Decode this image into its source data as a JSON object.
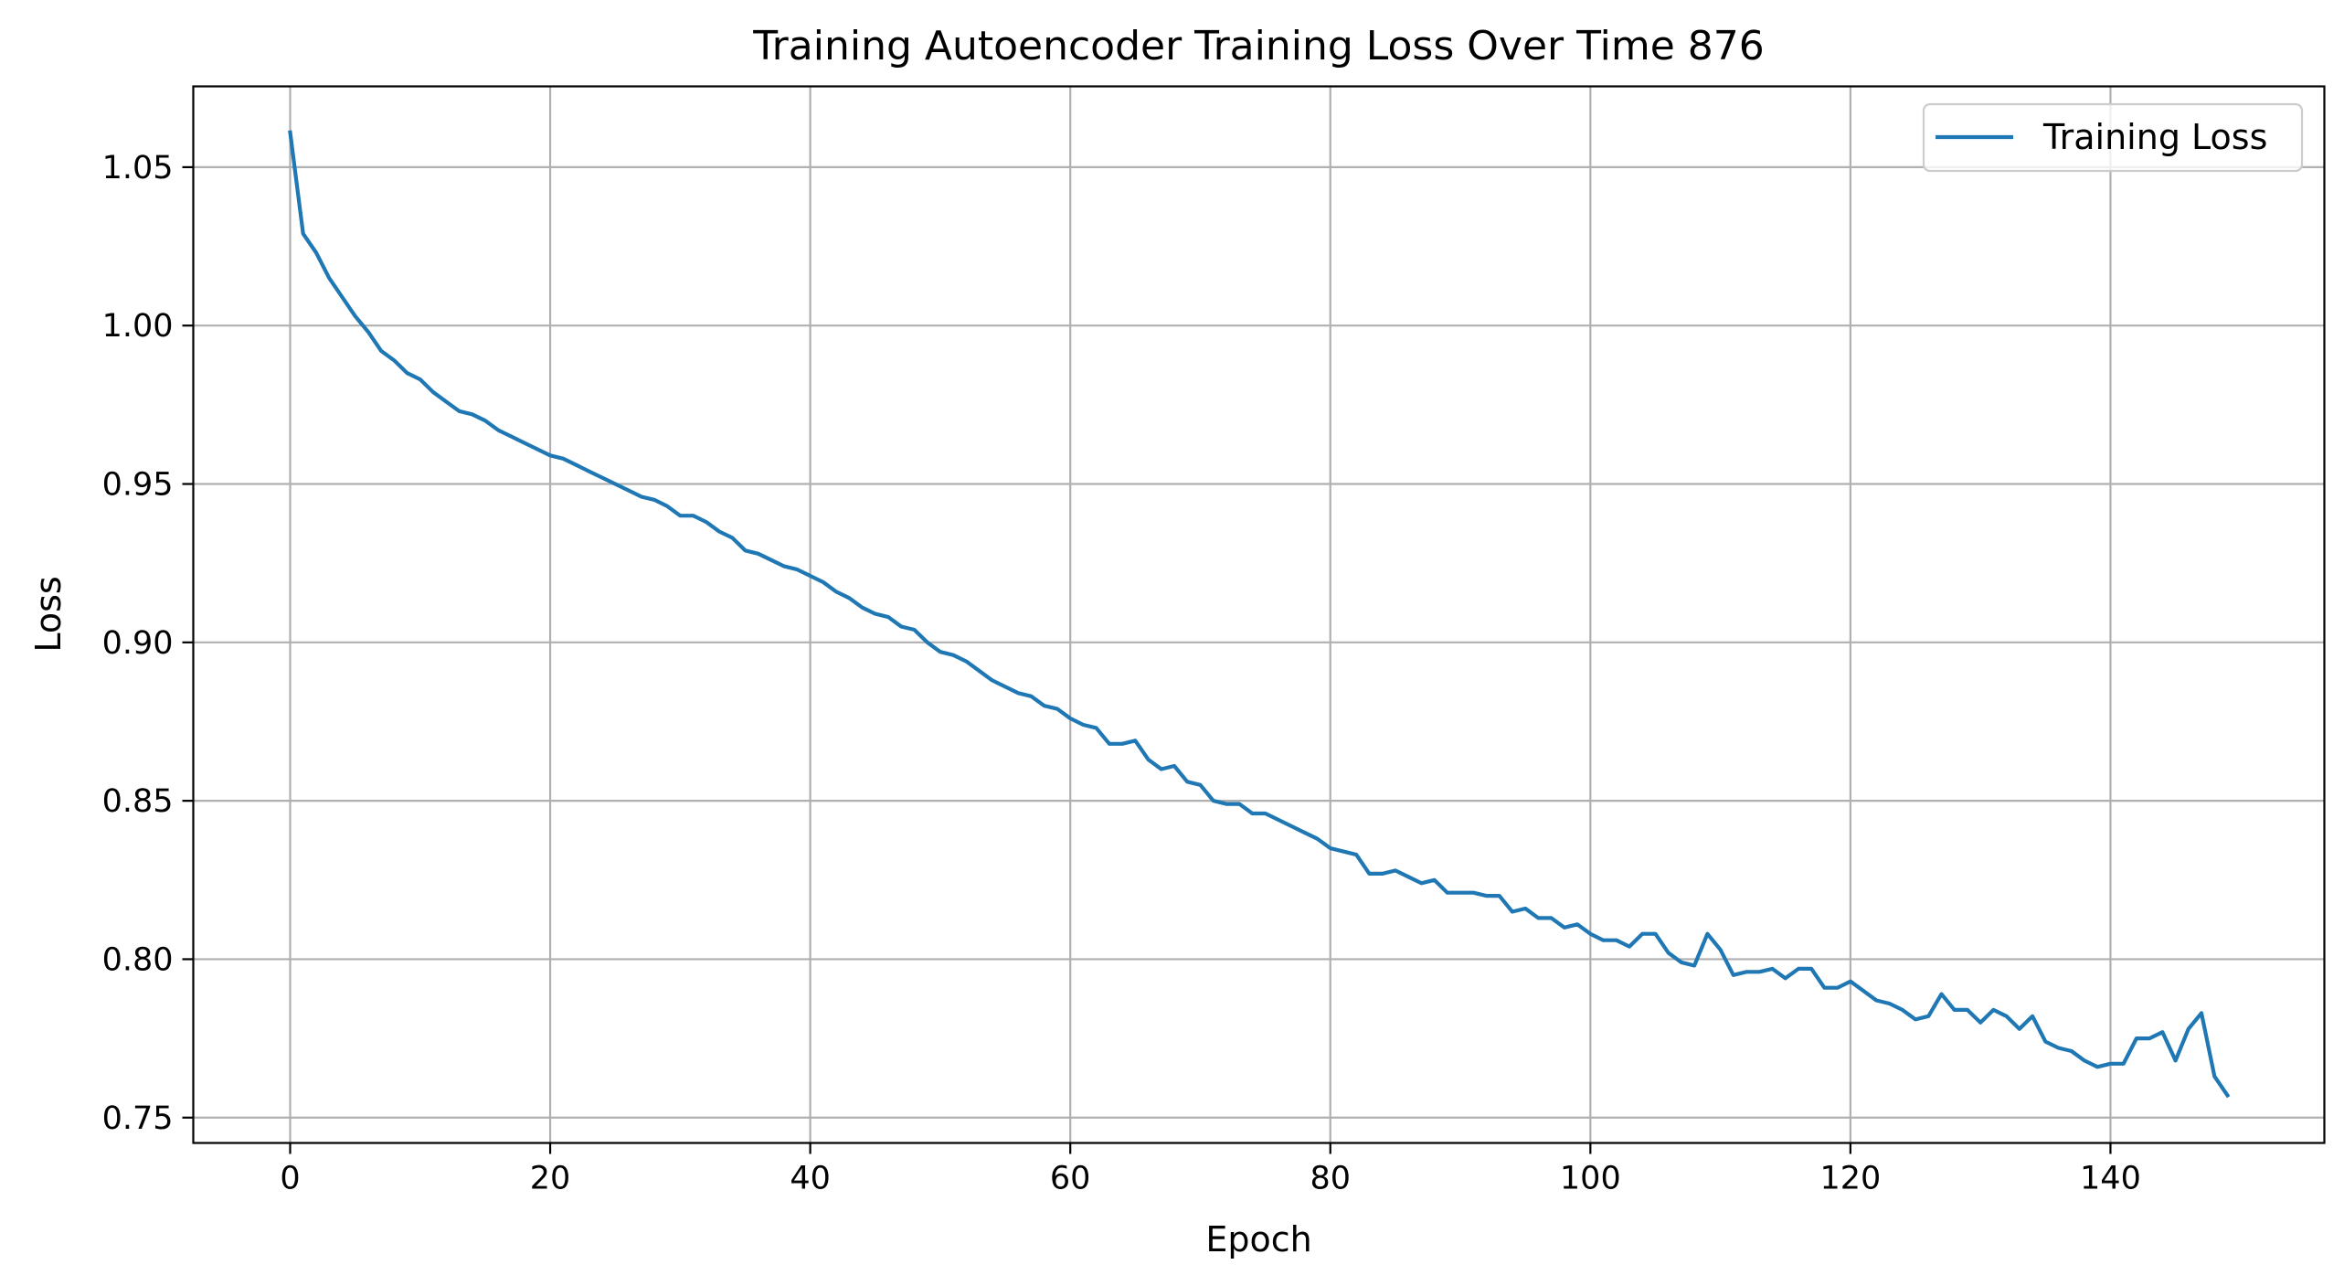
{
  "chart_data": {
    "type": "line",
    "title": "Training Autoencoder Training Loss Over Time 876",
    "xlabel": "Epoch",
    "ylabel": "Loss",
    "xlim": [
      -7.45,
      156.45
    ],
    "ylim": [
      0.742,
      1.0755
    ],
    "xticks": [
      0,
      20,
      40,
      60,
      80,
      100,
      120,
      140
    ],
    "yticks": [
      0.75,
      0.8,
      0.85,
      0.9,
      0.95,
      1.0,
      1.05
    ],
    "xtick_labels": [
      "0",
      "20",
      "40",
      "60",
      "80",
      "100",
      "120",
      "140"
    ],
    "ytick_labels": [
      "0.75",
      "0.80",
      "0.85",
      "0.90",
      "0.95",
      "1.00",
      "1.05"
    ],
    "grid": true,
    "legend_position": "top-right",
    "series": [
      {
        "name": "Training Loss",
        "color": "#1f77b4",
        "x": [
          0,
          1,
          2,
          3,
          4,
          5,
          6,
          7,
          8,
          9,
          10,
          11,
          12,
          13,
          14,
          15,
          16,
          17,
          18,
          19,
          20,
          21,
          22,
          23,
          24,
          25,
          26,
          27,
          28,
          29,
          30,
          31,
          32,
          33,
          34,
          35,
          36,
          37,
          38,
          39,
          40,
          41,
          42,
          43,
          44,
          45,
          46,
          47,
          48,
          49,
          50,
          51,
          52,
          53,
          54,
          55,
          56,
          57,
          58,
          59,
          60,
          61,
          62,
          63,
          64,
          65,
          66,
          67,
          68,
          69,
          70,
          71,
          72,
          73,
          74,
          75,
          76,
          77,
          78,
          79,
          80,
          81,
          82,
          83,
          84,
          85,
          86,
          87,
          88,
          89,
          90,
          91,
          92,
          93,
          94,
          95,
          96,
          97,
          98,
          99,
          100,
          101,
          102,
          103,
          104,
          105,
          106,
          107,
          108,
          109,
          110,
          111,
          112,
          113,
          114,
          115,
          116,
          117,
          118,
          119,
          120,
          121,
          122,
          123,
          124,
          125,
          126,
          127,
          128,
          129,
          130,
          131,
          132,
          133,
          134,
          135,
          136,
          137,
          138,
          139,
          140,
          141,
          142,
          143,
          144,
          145,
          146,
          147,
          148,
          149
        ],
        "y": [
          1.061,
          1.029,
          1.023,
          1.015,
          1.009,
          1.003,
          0.998,
          0.992,
          0.989,
          0.985,
          0.983,
          0.979,
          0.976,
          0.973,
          0.972,
          0.97,
          0.967,
          0.965,
          0.963,
          0.961,
          0.959,
          0.958,
          0.956,
          0.954,
          0.952,
          0.95,
          0.948,
          0.946,
          0.945,
          0.943,
          0.94,
          0.94,
          0.938,
          0.935,
          0.933,
          0.929,
          0.928,
          0.926,
          0.924,
          0.923,
          0.921,
          0.919,
          0.916,
          0.914,
          0.911,
          0.909,
          0.908,
          0.905,
          0.904,
          0.9,
          0.897,
          0.896,
          0.894,
          0.891,
          0.888,
          0.886,
          0.884,
          0.883,
          0.88,
          0.879,
          0.876,
          0.874,
          0.873,
          0.868,
          0.868,
          0.869,
          0.863,
          0.86,
          0.861,
          0.856,
          0.855,
          0.85,
          0.849,
          0.849,
          0.846,
          0.846,
          0.844,
          0.842,
          0.84,
          0.838,
          0.835,
          0.834,
          0.833,
          0.827,
          0.827,
          0.828,
          0.826,
          0.824,
          0.825,
          0.821,
          0.821,
          0.821,
          0.82,
          0.82,
          0.815,
          0.816,
          0.813,
          0.813,
          0.81,
          0.811,
          0.808,
          0.806,
          0.806,
          0.804,
          0.808,
          0.808,
          0.802,
          0.799,
          0.798,
          0.808,
          0.803,
          0.795,
          0.796,
          0.796,
          0.797,
          0.794,
          0.797,
          0.797,
          0.791,
          0.791,
          0.793,
          0.79,
          0.787,
          0.786,
          0.784,
          0.781,
          0.782,
          0.789,
          0.784,
          0.784,
          0.78,
          0.784,
          0.782,
          0.778,
          0.782,
          0.774,
          0.772,
          0.771,
          0.768,
          0.766,
          0.767,
          0.767,
          0.775,
          0.775,
          0.777,
          0.768,
          0.778,
          0.783,
          0.763,
          0.757
        ]
      }
    ]
  }
}
